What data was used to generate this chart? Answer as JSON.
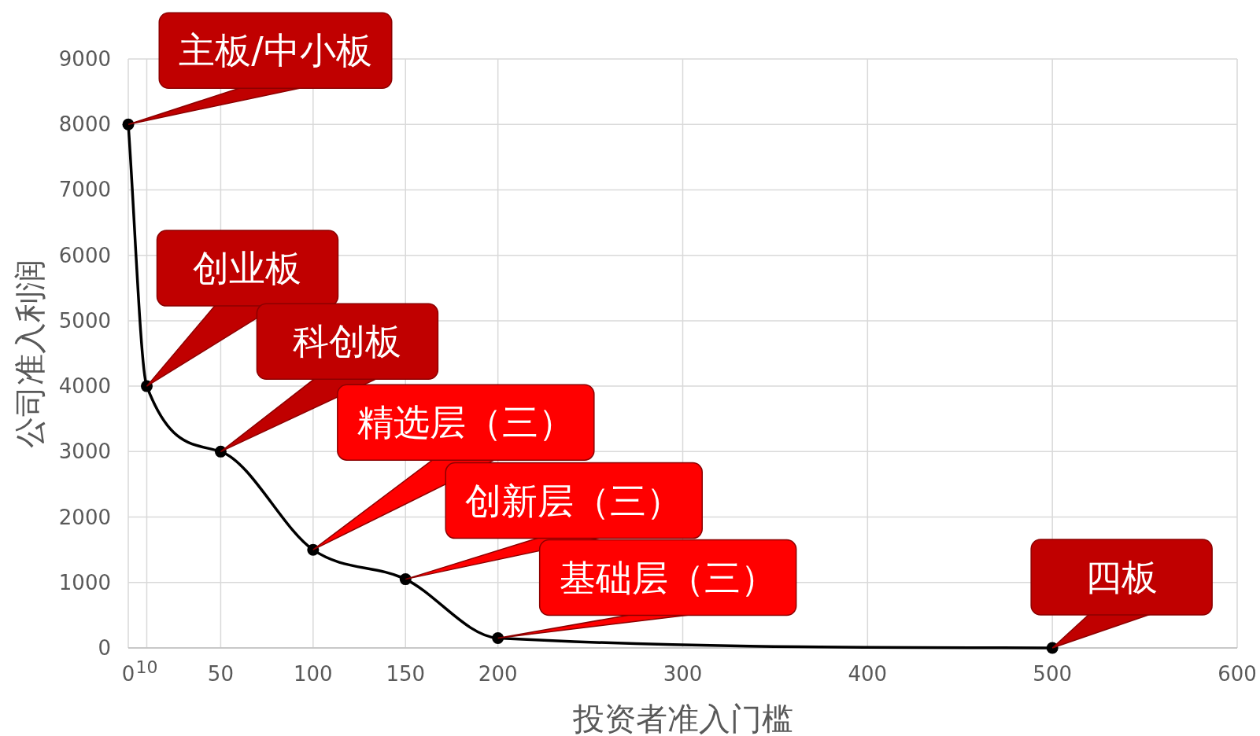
{
  "chart_data": {
    "type": "line",
    "xlabel": "投资者准入门槛",
    "ylabel": "公司准入利润",
    "x": [
      0,
      10,
      50,
      100,
      150,
      200,
      500
    ],
    "series": [
      {
        "color": "#000000",
        "values": [
          8000,
          4000,
          3000,
          1500,
          1050,
          150,
          0
        ]
      }
    ],
    "xlim": [
      0,
      600
    ],
    "xticks": [
      0,
      10,
      50,
      100,
      150,
      200,
      300,
      400,
      500,
      600
    ],
    "ylim": [
      0,
      9000
    ],
    "yticks": [
      0,
      1000,
      2000,
      3000,
      4000,
      5000,
      6000,
      7000,
      8000,
      9000
    ],
    "grid": true,
    "marker": "circle",
    "line_style": "solid",
    "annotations": [
      {
        "text": "主板/中小板",
        "x": 0,
        "y": 8000
      },
      {
        "text": "创业板",
        "x": 10,
        "y": 4000
      },
      {
        "text": "科创板",
        "x": 50,
        "y": 3000
      },
      {
        "text": "精选层（三）",
        "x": 100,
        "y": 1500
      },
      {
        "text": "创新层（三）",
        "x": 150,
        "y": 1050
      },
      {
        "text": "基础层（三）",
        "x": 200,
        "y": 150
      },
      {
        "text": "四板",
        "x": 500,
        "y": 0
      }
    ]
  }
}
